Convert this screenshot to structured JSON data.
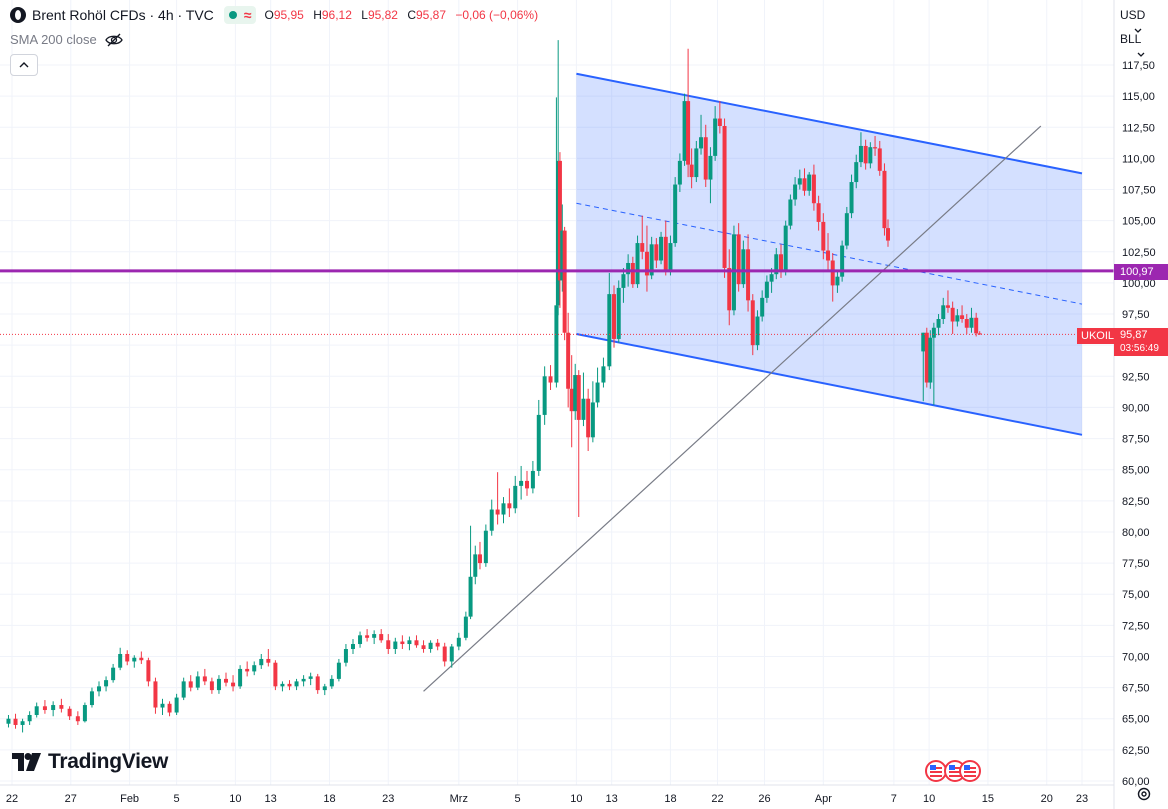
{
  "header": {
    "title": "Brent Rohöl CFDs · 4h · TVC",
    "status_symbol": "≈",
    "open_label": "O",
    "open": "95,95",
    "high_label": "H",
    "high": "96,12",
    "low_label": "L",
    "low": "95,82",
    "close_label": "C",
    "close": "95,87",
    "change": "−0,06 (−0,06%)"
  },
  "indicator": {
    "label": "SMA 200 close"
  },
  "currency": "USD",
  "unit": "BLL",
  "branding": "TradingView",
  "tags": {
    "level_price": "100,97",
    "symbol": "UKOIL",
    "last_price": "95,87",
    "countdown": "03:56:49"
  },
  "colors": {
    "up": "#089981",
    "down": "#f23645",
    "channel": "#2962ff",
    "channel_fill": "#2962ff",
    "level": "#9c27b0",
    "trendline": "#787b86",
    "grid": "#f0f3fa",
    "axis_text": "#131722"
  },
  "chart_data": {
    "type": "candlestick",
    "title": "Brent Rohöl CFDs · 4h · TVC",
    "y_ticks": [
      "117,50",
      "115,00",
      "112,50",
      "110,00",
      "107,50",
      "105,00",
      "102,50",
      "100,00",
      "97,50",
      "95,00",
      "92,50",
      "90,00",
      "87,50",
      "85,00",
      "82,50",
      "80,00",
      "77,50",
      "75,00",
      "72,50",
      "70,00",
      "67,50",
      "65,00",
      "62,50",
      "60,00"
    ],
    "ylim": [
      60,
      119.5
    ],
    "x_tick_labels": [
      "22",
      "27",
      "Feb",
      "5",
      "10",
      "13",
      "18",
      "23",
      "Mrz",
      "5",
      "10",
      "13",
      "18",
      "22",
      "26",
      "Apr",
      "7",
      "10",
      "15",
      "20",
      "23"
    ],
    "x_tick_days": [
      -9,
      -4,
      1,
      5,
      10,
      13,
      18,
      23,
      29,
      34,
      39,
      42,
      47,
      51,
      55,
      60,
      66,
      69,
      74,
      79,
      82
    ],
    "xlim_days": [
      -9.5,
      83.5
    ],
    "date_origin_note": "Jan 22 to Apr 23",
    "candles": [
      [
        -9.3,
        64.6,
        65.3,
        64.3,
        65.0
      ],
      [
        -8.7,
        65.0,
        65.4,
        64.2,
        64.5
      ],
      [
        -8.1,
        64.5,
        65.0,
        63.9,
        64.8
      ],
      [
        -7.5,
        64.8,
        65.6,
        64.5,
        65.3
      ],
      [
        -6.9,
        65.3,
        66.3,
        65.1,
        66.0
      ],
      [
        -6.2,
        66.0,
        66.5,
        65.4,
        65.7
      ],
      [
        -5.5,
        65.7,
        66.4,
        65.2,
        66.1
      ],
      [
        -4.8,
        66.1,
        66.6,
        65.5,
        65.8
      ],
      [
        -4.1,
        65.8,
        66.0,
        64.9,
        65.2
      ],
      [
        -3.4,
        65.2,
        65.6,
        64.5,
        64.8
      ],
      [
        -2.8,
        64.8,
        66.3,
        64.7,
        66.1
      ],
      [
        -2.2,
        66.1,
        67.5,
        65.9,
        67.2
      ],
      [
        -1.6,
        67.2,
        68.0,
        66.8,
        67.6
      ],
      [
        -1.0,
        67.6,
        68.4,
        67.2,
        68.1
      ],
      [
        -0.4,
        68.1,
        69.4,
        67.9,
        69.1
      ],
      [
        0.2,
        69.1,
        70.7,
        68.9,
        70.2
      ],
      [
        0.8,
        70.2,
        70.5,
        69.3,
        69.6
      ],
      [
        1.4,
        69.6,
        70.1,
        69.1,
        69.9
      ],
      [
        2.0,
        69.9,
        70.4,
        69.4,
        69.7
      ],
      [
        2.6,
        69.7,
        69.9,
        67.6,
        68.0
      ],
      [
        3.2,
        68.0,
        68.3,
        65.4,
        65.9
      ],
      [
        3.8,
        65.9,
        66.6,
        65.3,
        66.2
      ],
      [
        4.4,
        66.2,
        66.4,
        65.2,
        65.5
      ],
      [
        5.0,
        65.5,
        67.0,
        65.3,
        66.7
      ],
      [
        5.6,
        66.7,
        68.3,
        66.5,
        68.0
      ],
      [
        6.2,
        68.0,
        68.5,
        67.2,
        67.5
      ],
      [
        6.8,
        67.5,
        68.8,
        67.3,
        68.4
      ],
      [
        7.4,
        68.4,
        69.0,
        67.7,
        68.0
      ],
      [
        8.0,
        68.0,
        68.3,
        67.0,
        67.3
      ],
      [
        8.6,
        67.3,
        68.5,
        67.0,
        68.2
      ],
      [
        9.2,
        68.2,
        68.7,
        67.6,
        67.9
      ],
      [
        9.8,
        67.9,
        68.5,
        67.2,
        67.6
      ],
      [
        10.4,
        67.6,
        69.3,
        67.4,
        69.0
      ],
      [
        11.0,
        69.0,
        69.6,
        68.4,
        68.8
      ],
      [
        11.6,
        68.8,
        69.6,
        68.5,
        69.3
      ],
      [
        12.2,
        69.3,
        70.2,
        69.0,
        69.8
      ],
      [
        12.8,
        69.8,
        70.6,
        69.2,
        69.5
      ],
      [
        13.4,
        69.5,
        69.7,
        67.3,
        67.6
      ],
      [
        14.0,
        67.6,
        68.0,
        67.2,
        67.8
      ],
      [
        14.6,
        67.8,
        68.1,
        67.3,
        67.6
      ],
      [
        15.2,
        67.6,
        68.2,
        67.3,
        68.0
      ],
      [
        15.8,
        68.0,
        68.5,
        67.6,
        68.2
      ],
      [
        16.4,
        68.2,
        68.7,
        67.7,
        68.4
      ],
      [
        17.0,
        68.4,
        68.6,
        67.0,
        67.3
      ],
      [
        17.6,
        67.3,
        67.8,
        66.9,
        67.6
      ],
      [
        18.2,
        67.6,
        68.5,
        67.4,
        68.2
      ],
      [
        18.8,
        68.2,
        69.8,
        68.0,
        69.5
      ],
      [
        19.4,
        69.5,
        71.0,
        69.2,
        70.6
      ],
      [
        20.0,
        70.6,
        71.4,
        70.2,
        71.0
      ],
      [
        20.6,
        71.0,
        72.0,
        70.7,
        71.7
      ],
      [
        21.2,
        71.7,
        72.2,
        71.2,
        71.5
      ],
      [
        21.8,
        71.5,
        72.1,
        71.0,
        71.8
      ],
      [
        22.4,
        71.8,
        72.2,
        71.1,
        71.3
      ],
      [
        23.0,
        71.3,
        71.8,
        70.2,
        70.6
      ],
      [
        23.6,
        70.6,
        71.5,
        70.2,
        71.2
      ],
      [
        24.2,
        71.2,
        71.7,
        70.6,
        71.0
      ],
      [
        24.8,
        71.0,
        71.6,
        70.5,
        71.3
      ],
      [
        25.4,
        71.3,
        71.7,
        70.7,
        70.9
      ],
      [
        26.0,
        70.9,
        71.3,
        70.3,
        70.6
      ],
      [
        26.6,
        70.6,
        71.3,
        70.3,
        71.1
      ],
      [
        27.2,
        71.1,
        71.4,
        70.5,
        70.8
      ],
      [
        27.8,
        70.8,
        71.1,
        69.2,
        69.6
      ],
      [
        28.4,
        69.6,
        71.0,
        69.1,
        70.8
      ],
      [
        29.0,
        70.8,
        71.9,
        70.5,
        71.5
      ],
      [
        29.6,
        71.5,
        73.6,
        71.3,
        73.2
      ],
      [
        30.0,
        73.2,
        80.5,
        73.0,
        76.4
      ],
      [
        30.4,
        76.4,
        78.9,
        75.8,
        78.2
      ],
      [
        30.8,
        78.2,
        79.2,
        77.0,
        77.5
      ],
      [
        31.3,
        77.5,
        80.6,
        77.2,
        80.1
      ],
      [
        31.8,
        80.1,
        82.6,
        79.7,
        81.8
      ],
      [
        32.3,
        81.8,
        84.8,
        80.6,
        81.4
      ],
      [
        32.8,
        81.4,
        82.8,
        80.7,
        82.3
      ],
      [
        33.3,
        82.3,
        83.5,
        81.2,
        81.9
      ],
      [
        33.8,
        81.9,
        84.5,
        81.5,
        83.7
      ],
      [
        34.3,
        83.7,
        85.3,
        82.6,
        84.1
      ],
      [
        34.8,
        84.1,
        84.9,
        82.9,
        83.5
      ],
      [
        35.3,
        83.5,
        85.7,
        83.1,
        84.9
      ],
      [
        35.8,
        84.9,
        90.6,
        84.5,
        89.4
      ],
      [
        36.3,
        89.4,
        93.3,
        88.6,
        92.5
      ],
      [
        36.8,
        92.5,
        93.4,
        91.4,
        92.0
      ],
      [
        37.3,
        92.0,
        114.9,
        91.6,
        98.2
      ],
      [
        37.45,
        98.2,
        119.5,
        97.4,
        109.8
      ],
      [
        37.6,
        109.8,
        110.5,
        98.0,
        100.2
      ],
      [
        37.8,
        100.2,
        106.3,
        99.3,
        104.2
      ],
      [
        38.0,
        104.2,
        104.5,
        95.4,
        96.0
      ],
      [
        38.3,
        96.0,
        97.6,
        90.0,
        91.5
      ],
      [
        38.6,
        91.5,
        94.2,
        86.8,
        89.7
      ],
      [
        38.9,
        89.7,
        93.5,
        89.0,
        92.6
      ],
      [
        39.2,
        92.6,
        93.0,
        81.2,
        89.0
      ],
      [
        39.6,
        89.0,
        92.8,
        88.5,
        90.7
      ],
      [
        40.0,
        90.7,
        91.5,
        86.5,
        87.6
      ],
      [
        40.4,
        87.6,
        92.1,
        87.2,
        90.4
      ],
      [
        40.8,
        90.4,
        93.2,
        90.0,
        92.0
      ],
      [
        41.3,
        92.0,
        94.0,
        91.6,
        93.3
      ],
      [
        41.8,
        93.3,
        100.8,
        93.0,
        99.1
      ],
      [
        42.2,
        99.1,
        99.8,
        94.8,
        95.5
      ],
      [
        42.6,
        95.5,
        100.2,
        95.2,
        99.6
      ],
      [
        43.0,
        99.6,
        101.2,
        98.4,
        100.7
      ],
      [
        43.4,
        100.7,
        102.3,
        99.7,
        101.6
      ],
      [
        43.8,
        101.6,
        102.1,
        99.6,
        99.9
      ],
      [
        44.2,
        99.9,
        103.8,
        99.6,
        103.2
      ],
      [
        44.6,
        103.2,
        105.4,
        101.9,
        102.5
      ],
      [
        45.0,
        102.5,
        104.6,
        99.3,
        100.6
      ],
      [
        45.4,
        100.6,
        103.7,
        100.3,
        103.1
      ],
      [
        45.8,
        103.1,
        103.6,
        101.2,
        101.8
      ],
      [
        46.2,
        101.8,
        104.1,
        101.5,
        103.7
      ],
      [
        46.6,
        103.7,
        105.0,
        100.6,
        101.0
      ],
      [
        47.0,
        101.0,
        103.8,
        100.6,
        103.2
      ],
      [
        47.4,
        103.2,
        108.5,
        102.9,
        107.9
      ],
      [
        47.8,
        107.9,
        110.4,
        107.3,
        109.8
      ],
      [
        48.2,
        109.8,
        115.2,
        109.4,
        114.6
      ],
      [
        48.5,
        114.6,
        118.8,
        108.5,
        109.5
      ],
      [
        48.8,
        109.5,
        110.8,
        107.6,
        108.5
      ],
      [
        49.2,
        108.5,
        111.4,
        108.1,
        110.8
      ],
      [
        49.6,
        110.8,
        113.5,
        110.3,
        111.7
      ],
      [
        50.0,
        111.7,
        112.7,
        107.7,
        108.3
      ],
      [
        50.4,
        108.3,
        110.9,
        106.4,
        110.2
      ],
      [
        50.8,
        110.2,
        114.2,
        109.8,
        113.2
      ],
      [
        51.2,
        113.2,
        114.6,
        112.0,
        112.6
      ],
      [
        51.6,
        112.6,
        113.2,
        100.4,
        101.2
      ],
      [
        52.0,
        101.2,
        102.7,
        96.6,
        97.8
      ],
      [
        52.4,
        97.8,
        104.6,
        97.4,
        103.9
      ],
      [
        52.8,
        103.9,
        104.8,
        99.3,
        99.9
      ],
      [
        53.2,
        99.9,
        103.4,
        99.6,
        102.7
      ],
      [
        53.6,
        102.7,
        103.9,
        97.7,
        98.6
      ],
      [
        54.0,
        98.6,
        99.1,
        94.2,
        95.0
      ],
      [
        54.4,
        95.0,
        97.8,
        94.6,
        97.3
      ],
      [
        54.8,
        97.3,
        99.4,
        96.9,
        98.8
      ],
      [
        55.2,
        98.8,
        100.6,
        98.4,
        100.1
      ],
      [
        55.6,
        100.1,
        101.2,
        99.2,
        100.7
      ],
      [
        56.0,
        100.7,
        102.8,
        100.3,
        102.3
      ],
      [
        56.4,
        102.3,
        103.1,
        100.4,
        101.0
      ],
      [
        56.8,
        101.0,
        105.0,
        100.6,
        104.6
      ],
      [
        57.2,
        104.6,
        107.1,
        104.3,
        106.7
      ],
      [
        57.6,
        106.7,
        108.5,
        106.2,
        107.9
      ],
      [
        58.0,
        107.9,
        109.1,
        107.5,
        108.4
      ],
      [
        58.4,
        108.4,
        109.2,
        107.0,
        107.4
      ],
      [
        58.8,
        107.4,
        108.9,
        107.0,
        108.7
      ],
      [
        59.2,
        108.7,
        109.5,
        105.8,
        106.4
      ],
      [
        59.6,
        106.4,
        107.0,
        104.2,
        104.9
      ],
      [
        60.0,
        104.9,
        105.6,
        101.9,
        102.6
      ],
      [
        60.4,
        102.6,
        104.0,
        101.0,
        101.8
      ],
      [
        60.8,
        101.8,
        102.4,
        98.5,
        99.8
      ],
      [
        61.2,
        99.8,
        101.0,
        99.2,
        100.5
      ],
      [
        61.6,
        100.5,
        103.4,
        100.1,
        103.0
      ],
      [
        62.0,
        103.0,
        106.1,
        102.7,
        105.6
      ],
      [
        62.4,
        105.6,
        108.7,
        105.2,
        108.1
      ],
      [
        62.8,
        108.1,
        110.3,
        107.6,
        109.7
      ],
      [
        63.2,
        109.7,
        112.1,
        109.3,
        111.0
      ],
      [
        63.6,
        111.0,
        111.5,
        109.1,
        109.6
      ],
      [
        64.0,
        109.6,
        111.3,
        109.2,
        110.9
      ],
      [
        64.4,
        110.9,
        111.8,
        110.2,
        110.8
      ],
      [
        64.8,
        110.8,
        111.4,
        108.6,
        109.0
      ],
      [
        65.2,
        109.0,
        109.6,
        103.8,
        104.4
      ],
      [
        65.5,
        104.4,
        105.1,
        102.9,
        103.4
      ],
      [
        68.5,
        94.5,
        96.0,
        90.5,
        96.0
      ],
      [
        68.8,
        96.0,
        96.4,
        91.6,
        92.0
      ],
      [
        69.1,
        92.0,
        96.2,
        91.5,
        95.6
      ],
      [
        69.4,
        95.6,
        96.8,
        90.2,
        96.4
      ],
      [
        69.8,
        96.4,
        97.5,
        95.8,
        97.1
      ],
      [
        70.2,
        97.1,
        98.8,
        96.7,
        98.2
      ],
      [
        70.6,
        98.2,
        99.4,
        97.6,
        98.0
      ],
      [
        71.0,
        98.0,
        98.5,
        95.9,
        96.9
      ],
      [
        71.4,
        96.9,
        97.9,
        96.5,
        97.4
      ],
      [
        71.8,
        97.4,
        98.2,
        96.8,
        97.1
      ],
      [
        72.2,
        97.1,
        97.5,
        95.9,
        96.4
      ],
      [
        72.6,
        96.4,
        98.0,
        96.0,
        97.2
      ],
      [
        73.0,
        97.2,
        97.6,
        95.7,
        95.95
      ],
      [
        73.3,
        95.95,
        96.12,
        95.82,
        95.87
      ]
    ],
    "channel": {
      "upper": [
        [
          39.0,
          116.8
        ],
        [
          82.0,
          108.8
        ]
      ],
      "lower": [
        [
          39.0,
          95.9
        ],
        [
          82.0,
          87.8
        ]
      ],
      "mid": [
        [
          39.0,
          106.4
        ],
        [
          82.0,
          98.3
        ]
      ]
    },
    "trendline": [
      [
        26.0,
        67.2
      ],
      [
        78.5,
        112.6
      ]
    ],
    "horizontal_level": 100.97,
    "last_price": 95.87,
    "grid": true
  }
}
